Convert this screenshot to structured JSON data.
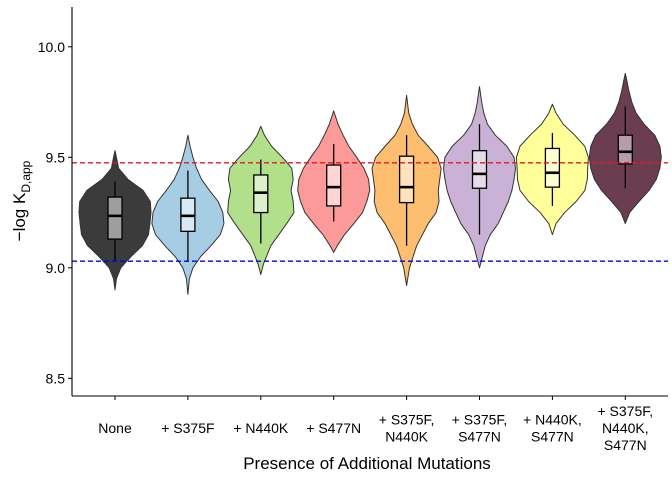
{
  "chart_data": {
    "type": "violin",
    "title": "",
    "xlabel": "Presence of Additional Mutations",
    "ylabel": "−log K",
    "ylabel_subscript": "D,app",
    "ylim": [
      8.42,
      10.18
    ],
    "yticks": [
      {
        "value": 8.5,
        "label": "8.5"
      },
      {
        "value": 9.0,
        "label": "9.0"
      },
      {
        "value": 9.5,
        "label": "9.5"
      },
      {
        "value": 10.0,
        "label": "10.0"
      }
    ],
    "reference_lines": [
      {
        "value": 9.475,
        "color": "#e41a1c",
        "style": "dashed"
      },
      {
        "value": 9.03,
        "color": "#0000ee",
        "style": "dashed"
      }
    ],
    "categories": [
      {
        "label": [
          "None"
        ],
        "fill": "#3b3b3b",
        "box_fill": "#9e9e9e",
        "min": 9.03,
        "q1": 9.13,
        "median": 9.235,
        "q3": 9.32,
        "max": 9.39,
        "violin": [
          [
            8.9,
            0.0
          ],
          [
            8.95,
            0.04
          ],
          [
            9.0,
            0.16
          ],
          [
            9.05,
            0.44
          ],
          [
            9.1,
            0.76
          ],
          [
            9.15,
            0.93
          ],
          [
            9.2,
            0.97
          ],
          [
            9.25,
            1.0
          ],
          [
            9.3,
            0.98
          ],
          [
            9.35,
            0.78
          ],
          [
            9.4,
            0.36
          ],
          [
            9.45,
            0.1
          ],
          [
            9.5,
            0.04
          ],
          [
            9.53,
            0.0
          ]
        ]
      },
      {
        "label": [
          "+ S375F"
        ],
        "fill": "#a6cde4",
        "box_fill": "#d7e9f4",
        "min": 9.03,
        "q1": 9.165,
        "median": 9.235,
        "q3": 9.315,
        "max": 9.44,
        "violin": [
          [
            8.88,
            0.0
          ],
          [
            8.95,
            0.04
          ],
          [
            9.0,
            0.14
          ],
          [
            9.05,
            0.35
          ],
          [
            9.1,
            0.64
          ],
          [
            9.15,
            0.9
          ],
          [
            9.2,
            1.0
          ],
          [
            9.25,
            0.97
          ],
          [
            9.3,
            0.84
          ],
          [
            9.35,
            0.6
          ],
          [
            9.4,
            0.38
          ],
          [
            9.45,
            0.24
          ],
          [
            9.5,
            0.14
          ],
          [
            9.55,
            0.06
          ],
          [
            9.6,
            0.0
          ]
        ]
      },
      {
        "label": [
          "+ N440K"
        ],
        "fill": "#b2df8a",
        "box_fill": "#ddf0cc",
        "min": 9.11,
        "q1": 9.25,
        "median": 9.34,
        "q3": 9.42,
        "max": 9.49,
        "violin": [
          [
            8.97,
            0.0
          ],
          [
            9.02,
            0.08
          ],
          [
            9.1,
            0.28
          ],
          [
            9.2,
            0.72
          ],
          [
            9.25,
            0.92
          ],
          [
            9.3,
            0.9
          ],
          [
            9.35,
            0.84
          ],
          [
            9.4,
            0.9
          ],
          [
            9.45,
            0.86
          ],
          [
            9.5,
            0.6
          ],
          [
            9.55,
            0.3
          ],
          [
            9.6,
            0.1
          ],
          [
            9.64,
            0.0
          ]
        ]
      },
      {
        "label": [
          "+ S477N"
        ],
        "fill": "#fb9a99",
        "box_fill": "#fdd5d4",
        "min": 9.21,
        "q1": 9.28,
        "median": 9.365,
        "q3": 9.465,
        "max": 9.56,
        "violin": [
          [
            9.07,
            0.0
          ],
          [
            9.1,
            0.1
          ],
          [
            9.15,
            0.3
          ],
          [
            9.2,
            0.56
          ],
          [
            9.25,
            0.8
          ],
          [
            9.3,
            0.92
          ],
          [
            9.35,
            1.0
          ],
          [
            9.4,
            0.97
          ],
          [
            9.45,
            0.84
          ],
          [
            9.5,
            0.64
          ],
          [
            9.55,
            0.42
          ],
          [
            9.6,
            0.26
          ],
          [
            9.65,
            0.12
          ],
          [
            9.71,
            0.0
          ]
        ]
      },
      {
        "label": [
          "+ S375F,",
          "N440K"
        ],
        "fill": "#fdbf6f",
        "box_fill": "#fee2bd",
        "min": 9.1,
        "q1": 9.295,
        "median": 9.365,
        "q3": 9.505,
        "max": 9.6,
        "violin": [
          [
            8.92,
            0.0
          ],
          [
            9.0,
            0.08
          ],
          [
            9.1,
            0.28
          ],
          [
            9.2,
            0.6
          ],
          [
            9.25,
            0.82
          ],
          [
            9.3,
            0.9
          ],
          [
            9.35,
            0.88
          ],
          [
            9.4,
            0.92
          ],
          [
            9.45,
            0.96
          ],
          [
            9.5,
            0.86
          ],
          [
            9.55,
            0.6
          ],
          [
            9.6,
            0.32
          ],
          [
            9.65,
            0.16
          ],
          [
            9.7,
            0.06
          ],
          [
            9.78,
            0.0
          ]
        ]
      },
      {
        "label": [
          "+ S375F,",
          "S477N"
        ],
        "fill": "#cab2d6",
        "box_fill": "#e6dbeb",
        "min": 9.15,
        "q1": 9.36,
        "median": 9.425,
        "q3": 9.53,
        "max": 9.65,
        "violin": [
          [
            9.0,
            0.0
          ],
          [
            9.05,
            0.08
          ],
          [
            9.1,
            0.16
          ],
          [
            9.15,
            0.3
          ],
          [
            9.2,
            0.52
          ],
          [
            9.3,
            0.8
          ],
          [
            9.35,
            0.9
          ],
          [
            9.4,
            0.96
          ],
          [
            9.45,
            1.0
          ],
          [
            9.5,
            0.96
          ],
          [
            9.55,
            0.76
          ],
          [
            9.6,
            0.44
          ],
          [
            9.65,
            0.22
          ],
          [
            9.7,
            0.12
          ],
          [
            9.75,
            0.06
          ],
          [
            9.82,
            0.0
          ]
        ]
      },
      {
        "label": [
          "+ N440K,",
          "S477N"
        ],
        "fill": "#ffff99",
        "box_fill": "#ffffd0",
        "min": 9.28,
        "q1": 9.365,
        "median": 9.43,
        "q3": 9.54,
        "max": 9.61,
        "violin": [
          [
            9.15,
            0.0
          ],
          [
            9.2,
            0.1
          ],
          [
            9.25,
            0.34
          ],
          [
            9.3,
            0.66
          ],
          [
            9.35,
            0.9
          ],
          [
            9.4,
            0.97
          ],
          [
            9.45,
            0.98
          ],
          [
            9.5,
            1.0
          ],
          [
            9.55,
            0.9
          ],
          [
            9.6,
            0.62
          ],
          [
            9.65,
            0.3
          ],
          [
            9.7,
            0.1
          ],
          [
            9.74,
            0.0
          ]
        ]
      },
      {
        "label": [
          "+ S375F,",
          "N440K,",
          "S477N"
        ],
        "fill": "#6a3d50",
        "box_fill": "#b59eaa",
        "min": 9.36,
        "q1": 9.47,
        "median": 9.525,
        "q3": 9.6,
        "max": 9.73,
        "violin": [
          [
            9.2,
            0.0
          ],
          [
            9.25,
            0.12
          ],
          [
            9.3,
            0.38
          ],
          [
            9.35,
            0.66
          ],
          [
            9.4,
            0.86
          ],
          [
            9.45,
            0.96
          ],
          [
            9.5,
            1.0
          ],
          [
            9.55,
            0.96
          ],
          [
            9.6,
            0.82
          ],
          [
            9.65,
            0.52
          ],
          [
            9.7,
            0.3
          ],
          [
            9.75,
            0.18
          ],
          [
            9.8,
            0.1
          ],
          [
            9.85,
            0.04
          ],
          [
            9.88,
            0.0
          ]
        ]
      }
    ]
  }
}
